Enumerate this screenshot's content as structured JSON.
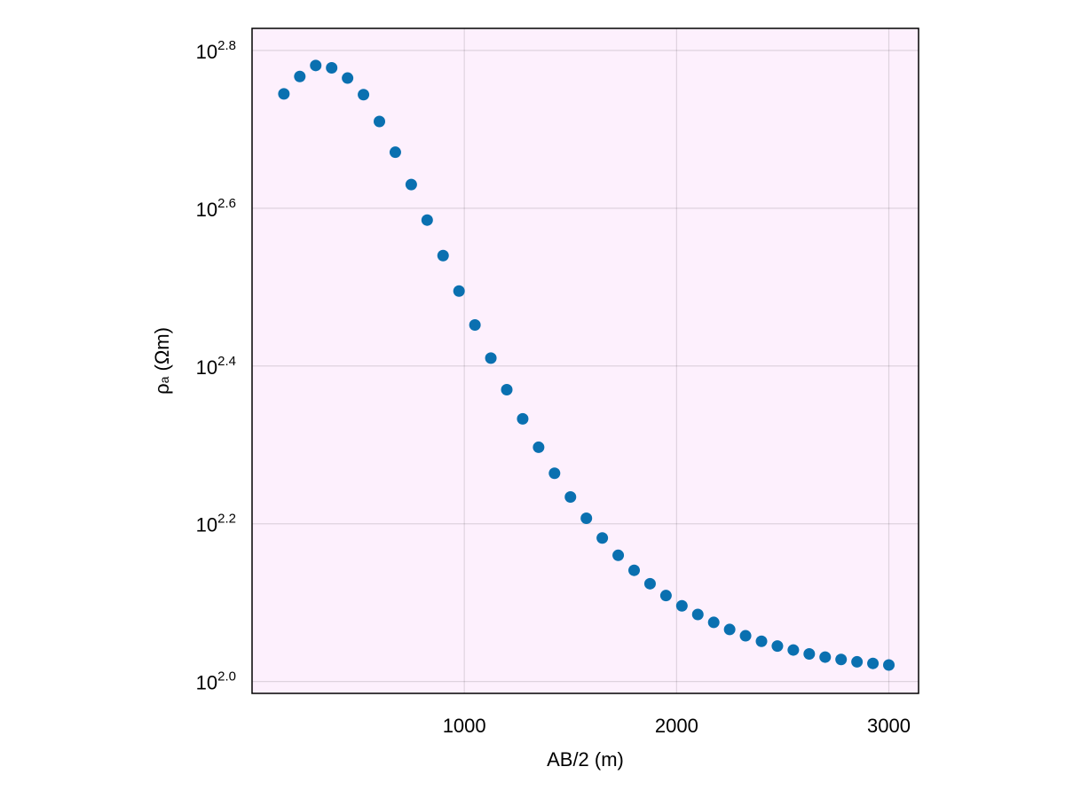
{
  "chart_data": {
    "type": "scatter",
    "title": "",
    "xlabel": "AB/2 (m)",
    "ylabel": "ρₐ (Ωm)",
    "ylabel_main": "ρ",
    "ylabel_sub": "a",
    "ylabel_rest": " (Ωm)",
    "yscale": "log10",
    "xlim": [
      0,
      3140
    ],
    "ylim_log10": [
      1.985,
      2.828
    ],
    "xticks": [
      1000,
      2000,
      3000
    ],
    "xtick_labels": [
      "1000",
      "2000",
      "3000"
    ],
    "yticks_log10": [
      2.0,
      2.2,
      2.4,
      2.6,
      2.8
    ],
    "ytick_base": "10",
    "ytick_exponents": [
      "2.0",
      "2.2",
      "2.4",
      "2.6",
      "2.8"
    ],
    "grid": true,
    "legend": "none",
    "colors": {
      "marker": "#0a70b0",
      "plot_background": "#fdf0fd",
      "frame": "#000000"
    },
    "series": [
      {
        "x": [
          150,
          225,
          300,
          375,
          450,
          525,
          600,
          675,
          750,
          825,
          900,
          975,
          1050,
          1125,
          1200,
          1275,
          1350,
          1425,
          1500,
          1575,
          1650,
          1725,
          1800,
          1875,
          1950,
          2025,
          2100,
          2175,
          2250,
          2325,
          2400,
          2475,
          2550,
          2625,
          2700,
          2775,
          2850,
          2925,
          3000
        ],
        "y_log10": [
          2.745,
          2.767,
          2.781,
          2.778,
          2.765,
          2.744,
          2.71,
          2.671,
          2.63,
          2.585,
          2.54,
          2.495,
          2.452,
          2.41,
          2.37,
          2.333,
          2.297,
          2.264,
          2.234,
          2.207,
          2.182,
          2.16,
          2.141,
          2.124,
          2.109,
          2.096,
          2.085,
          2.075,
          2.066,
          2.058,
          2.051,
          2.045,
          2.04,
          2.035,
          2.031,
          2.028,
          2.025,
          2.023,
          2.021
        ],
        "y": [
          555.9,
          584.8,
          603.9,
          599.8,
          582.1,
          554.6,
          512.9,
          468.8,
          426.6,
          384.6,
          346.7,
          312.6,
          283.1,
          257.0,
          234.4,
          215.3,
          198.2,
          183.7,
          171.4,
          161.1,
          152.1,
          144.5,
          138.4,
          133.0,
          128.5,
          124.7,
          121.6,
          118.9,
          116.4,
          114.3,
          112.5,
          110.9,
          109.6,
          108.4,
          107.4,
          106.7,
          105.9,
          105.4,
          105.0
        ]
      }
    ]
  }
}
